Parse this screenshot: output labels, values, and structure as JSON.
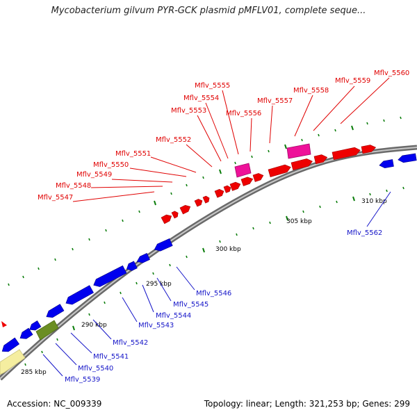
{
  "title": "Mycobacterium gilvum PYR-GCK plasmid pMFLV01, complete seque...",
  "footer": {
    "accession": "Accession: NC_009339",
    "summary": "Topology: linear; Length: 321,253 bp; Genes: 299"
  },
  "colors": {
    "forward_gene": "#ee0000",
    "reverse_gene": "#0000ee",
    "pink_feature": "#ee1199",
    "olive_feature": "#6b8e23",
    "yellow_feature": "#f5eea0",
    "backbone": "#808080",
    "tick": "#0a7d0a"
  },
  "scale_labels": [
    "285 kbp",
    "290 kbp",
    "295 kbp",
    "300 kbp",
    "305 kbp",
    "310 kbp"
  ],
  "forward_genes": [
    "Mflv_5547",
    "Mflv_5548",
    "Mflv_5549",
    "Mflv_5550",
    "Mflv_5551",
    "Mflv_5552",
    "Mflv_5553",
    "Mflv_5554",
    "Mflv_5555",
    "Mflv_5556",
    "Mflv_5557",
    "Mflv_5558",
    "Mflv_5559",
    "Mflv_5560"
  ],
  "reverse_genes": [
    "Mflv_5539",
    "Mflv_5540",
    "Mflv_5541",
    "Mflv_5542",
    "Mflv_5543",
    "Mflv_5544",
    "Mflv_5545",
    "Mflv_5546",
    "Mflv_5562"
  ]
}
